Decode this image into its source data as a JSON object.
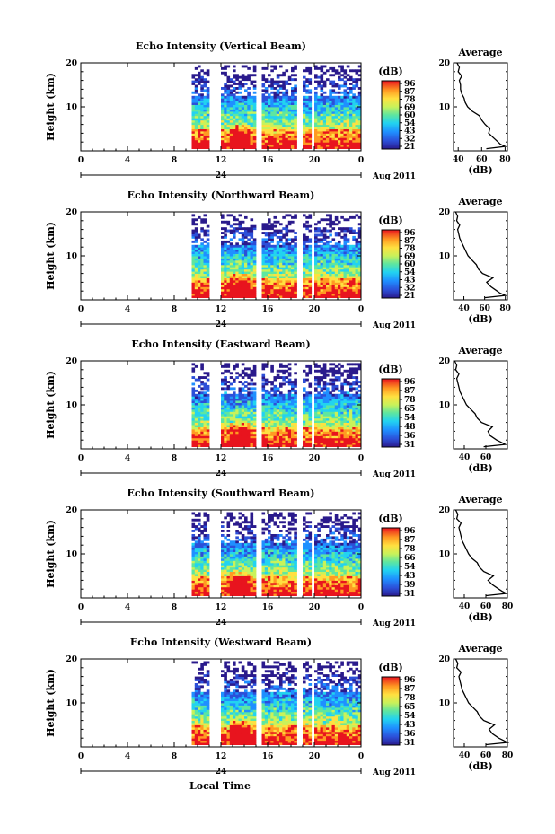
{
  "figure": {
    "xlabel": "Local Time",
    "date_label": "Aug 2011",
    "day_marker": "24",
    "panel_ylabel": "Height (km)",
    "colorbar_title": "(dB)",
    "colorbar_ticks": [
      "96",
      "87",
      "78",
      "69",
      "60",
      "54",
      "43",
      "32",
      "21"
    ],
    "profile_title": "Average",
    "profile_xlabel": "(dB)"
  },
  "chart_data": [
    {
      "type": "heatmap",
      "title": "Echo Intensity (Vertical Beam)",
      "xlim": [
        0,
        24
      ],
      "ylim": [
        0,
        20
      ],
      "xticks": [
        "0",
        "4",
        "8",
        "12",
        "16",
        "20",
        "0"
      ],
      "yticks": [
        "10",
        "20"
      ],
      "cb_ticks": [
        "96",
        "87",
        "78",
        "69",
        "60",
        "54",
        "43",
        "32",
        "21"
      ],
      "data_segments_hours": [
        [
          9.5,
          11.0
        ],
        [
          12.0,
          14.8
        ],
        [
          15.5,
          18.4
        ],
        [
          19.0,
          19.6
        ],
        [
          20.0,
          24.0
        ]
      ],
      "profile": {
        "xlim": [
          36,
          82
        ],
        "xticks": [
          "40",
          "60",
          "80"
        ],
        "yticks": [
          "10",
          "20"
        ],
        "heights_km": [
          0.5,
          1,
          1.5,
          2,
          3,
          4,
          5,
          6,
          7,
          8,
          9,
          10,
          11,
          12,
          13,
          14,
          15,
          16,
          17,
          18,
          19,
          20
        ],
        "avg_db": [
          64,
          80,
          76,
          74,
          70,
          66,
          67,
          63,
          60,
          58,
          52,
          48,
          46,
          45,
          43,
          42,
          42,
          41,
          43,
          40,
          41,
          39
        ]
      }
    },
    {
      "type": "heatmap",
      "title": "Echo Intensity (Northward Beam)",
      "xlim": [
        0,
        24
      ],
      "ylim": [
        0,
        20
      ],
      "xticks": [
        "0",
        "4",
        "8",
        "12",
        "16",
        "20",
        "0"
      ],
      "yticks": [
        "10",
        "20"
      ],
      "cb_ticks": [
        "96",
        "87",
        "78",
        "69",
        "60",
        "54",
        "43",
        "32",
        "21"
      ],
      "data_segments_hours": [
        [
          9.5,
          11.0
        ],
        [
          12.0,
          14.8
        ],
        [
          15.5,
          18.4
        ],
        [
          19.0,
          19.6
        ],
        [
          20.0,
          24.0
        ]
      ],
      "profile": {
        "xlim": [
          30,
          82
        ],
        "xticks": [
          "40",
          "60",
          "80"
        ],
        "yticks": [
          "10",
          "20"
        ],
        "heights_km": [
          0.5,
          1,
          1.5,
          2,
          3,
          4,
          5,
          6,
          7,
          8,
          9,
          10,
          11,
          12,
          13,
          14,
          15,
          16,
          17,
          18,
          19,
          20
        ],
        "avg_db": [
          60,
          80,
          75,
          72,
          66,
          62,
          68,
          58,
          54,
          52,
          48,
          44,
          42,
          40,
          38,
          36,
          35,
          34,
          36,
          33,
          34,
          32
        ]
      }
    },
    {
      "type": "heatmap",
      "title": "Echo Intensity (Eastward Beam)",
      "xlim": [
        0,
        24
      ],
      "ylim": [
        0,
        20
      ],
      "xticks": [
        "0",
        "4",
        "8",
        "12",
        "16",
        "20",
        "0"
      ],
      "yticks": [
        "10",
        "20"
      ],
      "cb_ticks": [
        "96",
        "87",
        "78",
        "65",
        "54",
        "48",
        "36",
        "31"
      ],
      "data_segments_hours": [
        [
          9.5,
          11.0
        ],
        [
          12.0,
          14.8
        ],
        [
          15.5,
          18.4
        ],
        [
          19.0,
          19.6
        ],
        [
          20.0,
          24.0
        ]
      ],
      "profile": {
        "xlim": [
          30,
          80
        ],
        "xticks": [
          "40",
          "60"
        ],
        "yticks": [
          "10",
          "20"
        ],
        "heights_km": [
          0.5,
          1,
          1.5,
          2,
          3,
          4,
          5,
          6,
          7,
          8,
          9,
          10,
          11,
          12,
          13,
          14,
          15,
          16,
          17,
          18,
          19,
          20
        ],
        "avg_db": [
          58,
          78,
          74,
          70,
          64,
          62,
          66,
          56,
          52,
          50,
          46,
          42,
          40,
          38,
          36,
          35,
          34,
          33,
          35,
          32,
          33,
          31
        ]
      }
    },
    {
      "type": "heatmap",
      "title": "Echo Intensity (Southward Beam)",
      "xlim": [
        0,
        24
      ],
      "ylim": [
        0,
        20
      ],
      "xticks": [
        "0",
        "4",
        "8",
        "12",
        "16",
        "20",
        "0"
      ],
      "yticks": [
        "10",
        "20"
      ],
      "cb_ticks": [
        "96",
        "87",
        "78",
        "66",
        "54",
        "43",
        "39",
        "31"
      ],
      "data_segments_hours": [
        [
          9.5,
          11.0
        ],
        [
          12.0,
          14.8
        ],
        [
          15.5,
          18.4
        ],
        [
          19.0,
          19.6
        ],
        [
          20.0,
          24.0
        ]
      ],
      "profile": {
        "xlim": [
          30,
          80
        ],
        "xticks": [
          "40",
          "60",
          "80"
        ],
        "yticks": [
          "10",
          "20"
        ],
        "heights_km": [
          0.5,
          1,
          1.5,
          2,
          3,
          4,
          5,
          6,
          7,
          8,
          9,
          10,
          11,
          12,
          13,
          14,
          15,
          16,
          17,
          18,
          19,
          20
        ],
        "avg_db": [
          60,
          79,
          75,
          72,
          66,
          62,
          67,
          58,
          54,
          52,
          47,
          44,
          42,
          40,
          38,
          37,
          36,
          35,
          37,
          33,
          34,
          32
        ]
      }
    },
    {
      "type": "heatmap",
      "title": "Echo Intensity (Westward Beam)",
      "xlim": [
        0,
        24
      ],
      "ylim": [
        0,
        20
      ],
      "xticks": [
        "0",
        "4",
        "8",
        "12",
        "16",
        "20",
        "0"
      ],
      "yticks": [
        "10",
        "20"
      ],
      "cb_ticks": [
        "96",
        "87",
        "78",
        "65",
        "54",
        "43",
        "36",
        "31"
      ],
      "data_segments_hours": [
        [
          9.5,
          11.0
        ],
        [
          12.0,
          14.8
        ],
        [
          15.5,
          18.4
        ],
        [
          19.0,
          19.6
        ],
        [
          20.0,
          24.0
        ]
      ],
      "profile": {
        "xlim": [
          30,
          80
        ],
        "xticks": [
          "40",
          "60",
          "80"
        ],
        "yticks": [
          "10",
          "20"
        ],
        "heights_km": [
          0.5,
          1,
          1.5,
          2,
          3,
          4,
          5,
          6,
          7,
          8,
          9,
          10,
          11,
          12,
          13,
          14,
          15,
          16,
          17,
          18,
          19,
          20
        ],
        "avg_db": [
          60,
          80,
          76,
          72,
          66,
          63,
          68,
          58,
          54,
          52,
          48,
          44,
          42,
          40,
          38,
          37,
          36,
          35,
          37,
          33,
          34,
          32
        ]
      }
    }
  ]
}
